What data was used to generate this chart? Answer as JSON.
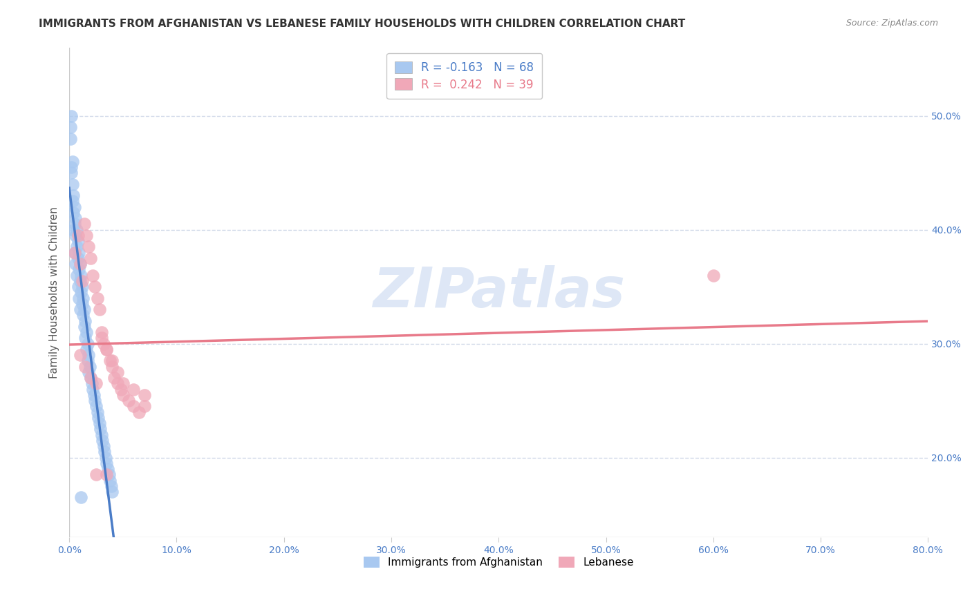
{
  "title": "IMMIGRANTS FROM AFGHANISTAN VS LEBANESE FAMILY HOUSEHOLDS WITH CHILDREN CORRELATION CHART",
  "source": "Source: ZipAtlas.com",
  "ylabel": "Family Households with Children",
  "xlim": [
    0.0,
    0.8
  ],
  "ylim": [
    0.13,
    0.56
  ],
  "legend_label1": "Immigrants from Afghanistan",
  "legend_label2": "Lebanese",
  "afghanistan_x": [
    0.001,
    0.002,
    0.002,
    0.003,
    0.003,
    0.004,
    0.004,
    0.005,
    0.005,
    0.006,
    0.006,
    0.007,
    0.007,
    0.008,
    0.008,
    0.009,
    0.009,
    0.01,
    0.01,
    0.011,
    0.011,
    0.012,
    0.012,
    0.013,
    0.013,
    0.014,
    0.014,
    0.015,
    0.015,
    0.016,
    0.016,
    0.017,
    0.017,
    0.018,
    0.018,
    0.019,
    0.02,
    0.021,
    0.022,
    0.023,
    0.024,
    0.025,
    0.026,
    0.027,
    0.028,
    0.029,
    0.03,
    0.031,
    0.032,
    0.033,
    0.034,
    0.035,
    0.036,
    0.037,
    0.038,
    0.039,
    0.04,
    0.001,
    0.002,
    0.003,
    0.004,
    0.005,
    0.006,
    0.007,
    0.008,
    0.009,
    0.01,
    0.011
  ],
  "afghanistan_y": [
    0.49,
    0.5,
    0.455,
    0.46,
    0.44,
    0.43,
    0.415,
    0.42,
    0.405,
    0.41,
    0.395,
    0.4,
    0.385,
    0.39,
    0.375,
    0.38,
    0.365,
    0.37,
    0.355,
    0.36,
    0.345,
    0.35,
    0.335,
    0.34,
    0.325,
    0.33,
    0.315,
    0.32,
    0.305,
    0.31,
    0.295,
    0.3,
    0.285,
    0.29,
    0.275,
    0.28,
    0.27,
    0.265,
    0.26,
    0.255,
    0.25,
    0.245,
    0.24,
    0.235,
    0.23,
    0.225,
    0.22,
    0.215,
    0.21,
    0.205,
    0.2,
    0.195,
    0.19,
    0.185,
    0.18,
    0.175,
    0.17,
    0.48,
    0.45,
    0.425,
    0.4,
    0.38,
    0.37,
    0.36,
    0.35,
    0.34,
    0.33,
    0.165
  ],
  "lebanese_x": [
    0.005,
    0.008,
    0.01,
    0.012,
    0.014,
    0.016,
    0.018,
    0.02,
    0.022,
    0.024,
    0.026,
    0.028,
    0.03,
    0.032,
    0.035,
    0.038,
    0.04,
    0.042,
    0.045,
    0.048,
    0.05,
    0.055,
    0.06,
    0.065,
    0.07,
    0.01,
    0.015,
    0.02,
    0.025,
    0.03,
    0.035,
    0.04,
    0.045,
    0.05,
    0.06,
    0.07,
    0.025,
    0.035,
    0.6
  ],
  "lebanese_y": [
    0.38,
    0.395,
    0.37,
    0.355,
    0.405,
    0.395,
    0.385,
    0.375,
    0.36,
    0.35,
    0.34,
    0.33,
    0.31,
    0.3,
    0.295,
    0.285,
    0.28,
    0.27,
    0.265,
    0.26,
    0.255,
    0.25,
    0.245,
    0.24,
    0.245,
    0.29,
    0.28,
    0.27,
    0.265,
    0.305,
    0.295,
    0.285,
    0.275,
    0.265,
    0.26,
    0.255,
    0.185,
    0.185,
    0.36
  ],
  "blue_line_color": "#4a7cc7",
  "pink_line_color": "#e87a8a",
  "blue_dot_color": "#a8c8f0",
  "pink_dot_color": "#f0a8b8",
  "watermark_text": "ZIPatlas",
  "watermark_color": "#c8d8f0",
  "grid_color": "#d0d8e8",
  "background_color": "#ffffff",
  "title_fontsize": 11,
  "axis_label_fontsize": 11,
  "tick_fontsize": 10,
  "r_afg": -0.163,
  "n_afg": 68,
  "r_leb": 0.242,
  "n_leb": 39
}
